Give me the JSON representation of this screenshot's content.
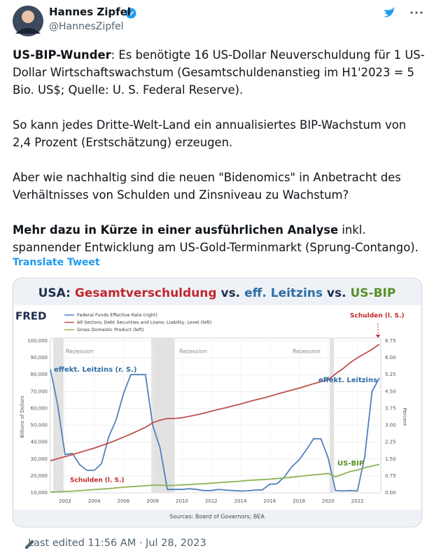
{
  "tweet": {
    "author": "Hannes Zipfel",
    "handle": "@HannesZipfel",
    "paragraphs": [
      [
        {
          "text": "US-BIP-Wunder",
          "bold": true
        },
        {
          "text": ": Es benötigte 16 US-Dollar Neuverschuldung für 1 US-Dollar Wirtschaftswachstum (Gesamtschuldenanstieg im H1'2023 = 5 Bio. US$; Quelle: U. S. Federal Reserve)."
        }
      ],
      [
        {
          "text": "So kann jedes Dritte-Welt-Land ein annualisiertes BIP-Wachstum von 2,4 Prozent (Erstschätzung) erzeugen."
        }
      ],
      [
        {
          "text": "Aber wie nachhaltig sind die neuen \"Bidenomics\" in Anbetracht des Verhältnisses von Schulden und Zinsniveau zu Wachstum?"
        }
      ],
      [
        {
          "text": "Mehr dazu in Kürze in einer ausführlichen Analyse",
          "bold": true
        },
        {
          "text": " inkl. spannender Entwicklung am US-Gold-Terminmarkt (Sprung-Contango)."
        }
      ]
    ],
    "translate": "Translate Tweet",
    "edited": "Last edited 11:56 AM · Jul 28, 2023"
  },
  "chart_data": {
    "type": "line",
    "title_parts": [
      {
        "text": "USA: ",
        "color": "#1f2f4f"
      },
      {
        "text": "Gesamtverschuldung",
        "color": "#c0272d"
      },
      {
        "text": " vs. ",
        "color": "#1f2f4f"
      },
      {
        "text": "eff. Leitzins",
        "color": "#2e6da4"
      },
      {
        "text": " vs. ",
        "color": "#1f2f4f"
      },
      {
        "text": "US-BIP",
        "color": "#5a8f29"
      }
    ],
    "logo": "FRED",
    "ylabel": "Billions of Dollars",
    "y2label": "Percent",
    "source": "Sources: Board of Governors; BEA",
    "annotations": [
      "Rezession",
      "Rezession",
      "Rezession",
      "Schulden (l. S.)",
      "Schulden (l. S.)",
      "effekt. Leitzins (r. S.)",
      "effekt. Leitzins",
      "US-BIP"
    ],
    "recessions": [
      [
        2001.2,
        2001.9
      ],
      [
        2007.9,
        2009.5
      ],
      [
        2020.1,
        2020.4
      ]
    ],
    "x": [
      2001,
      2001.5,
      2002,
      2002.5,
      2003,
      2003.5,
      2004,
      2004.5,
      2005,
      2005.5,
      2006,
      2006.5,
      2007,
      2007.5,
      2008,
      2008.5,
      2009,
      2009.5,
      2010,
      2010.5,
      2011,
      2011.5,
      2012,
      2012.5,
      2013,
      2013.5,
      2014,
      2014.5,
      2015,
      2015.5,
      2016,
      2016.5,
      2017,
      2017.5,
      2018,
      2018.5,
      2019,
      2019.5,
      2020,
      2020.5,
      2021,
      2021.5,
      2022,
      2022.5,
      2023,
      2023.5
    ],
    "series": [
      {
        "name": "Federal Funds Effective Rate (right)",
        "color": "#4f81bd",
        "axis": "y2",
        "values": [
          5.5,
          3.9,
          1.7,
          1.75,
          1.25,
          1.0,
          1.0,
          1.3,
          2.5,
          3.25,
          4.4,
          5.25,
          5.25,
          5.25,
          3.0,
          2.0,
          0.15,
          0.15,
          0.15,
          0.18,
          0.15,
          0.1,
          0.1,
          0.15,
          0.12,
          0.1,
          0.08,
          0.09,
          0.12,
          0.13,
          0.38,
          0.4,
          0.7,
          1.15,
          1.45,
          1.9,
          2.4,
          2.4,
          1.55,
          0.1,
          0.08,
          0.1,
          0.08,
          1.6,
          4.5,
          5.1
        ]
      },
      {
        "name": "All Sectors; Debt Securities and Loans; Liability, Level (left)",
        "color": "#c0504d",
        "values": [
          29000,
          30200,
          31400,
          32600,
          33900,
          35200,
          36500,
          38000,
          39500,
          41200,
          43000,
          44800,
          46800,
          48800,
          51500,
          53000,
          54000,
          54000,
          54500,
          55300,
          56200,
          57200,
          58300,
          59400,
          60400,
          61500,
          62600,
          63800,
          65000,
          66000,
          67200,
          68500,
          69700,
          70800,
          72000,
          73300,
          74600,
          75800,
          77000,
          80500,
          83500,
          87000,
          90000,
          92500,
          95000,
          98000
        ]
      },
      {
        "name": "Gross Domestic Product (left)",
        "color": "#8db255",
        "values": [
          10500,
          10600,
          10800,
          11000,
          11300,
          11600,
          11900,
          12200,
          12500,
          12900,
          13300,
          13600,
          13900,
          14200,
          14500,
          14500,
          14300,
          14400,
          14700,
          14900,
          15200,
          15400,
          15700,
          16000,
          16300,
          16600,
          16900,
          17300,
          17600,
          17800,
          18100,
          18400,
          18800,
          19200,
          19700,
          20200,
          20600,
          21000,
          21500,
          19500,
          21000,
          22600,
          23500,
          24800,
          25900,
          26800
        ]
      }
    ],
    "xlim": [
      2001,
      2023.6
    ],
    "xticks": [
      2002,
      2004,
      2006,
      2008,
      2010,
      2012,
      2014,
      2016,
      2018,
      2020,
      2022
    ],
    "ylim": [
      10000,
      100000
    ],
    "yticks": [
      {
        "value": 10000,
        "label": "10,000"
      },
      {
        "value": 20000,
        "label": "20,000"
      },
      {
        "value": 30000,
        "label": "30,000"
      },
      {
        "value": 40000,
        "label": "40,000"
      },
      {
        "value": 50000,
        "label": "50,000"
      },
      {
        "value": 60000,
        "label": "60,000"
      },
      {
        "value": 70000,
        "label": "70,000"
      },
      {
        "value": 80000,
        "label": "80,000"
      },
      {
        "value": 90000,
        "label": "90,000"
      },
      {
        "value": 100000,
        "label": "100,000"
      }
    ],
    "y2lim": [
      0,
      6.75
    ],
    "y2ticks": [
      {
        "value": 0,
        "label": "0.00"
      },
      {
        "value": 0.75,
        "label": "0.75"
      },
      {
        "value": 1.5,
        "label": "1.50"
      },
      {
        "value": 2.25,
        "label": "2.25"
      },
      {
        "value": 3,
        "label": "3.00"
      },
      {
        "value": 3.75,
        "label": "3.75"
      },
      {
        "value": 4.5,
        "label": "4.50"
      },
      {
        "value": 5.25,
        "label": "5.25"
      },
      {
        "value": 6,
        "label": "6.00"
      },
      {
        "value": 6.75,
        "label": "6.75"
      }
    ],
    "grid": true
  }
}
